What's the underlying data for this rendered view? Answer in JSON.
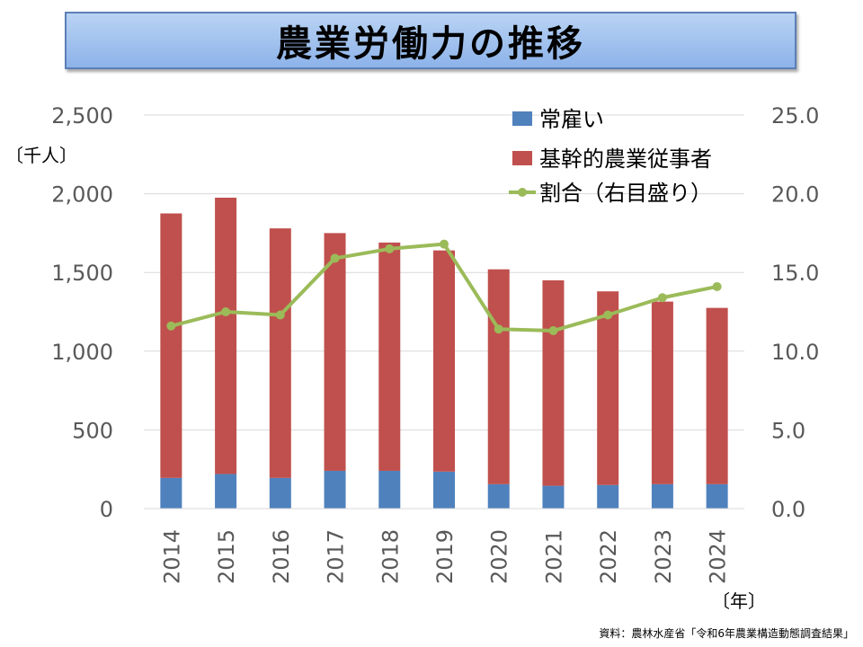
{
  "title": "農業労働力の推移",
  "source": "資料：農林水産省「令和6年農業構造動態調査結果」",
  "chart_data": {
    "type": "bar",
    "stacked": true,
    "categories": [
      "2014",
      "2015",
      "2016",
      "2017",
      "2018",
      "2019",
      "2020",
      "2021",
      "2022",
      "2023",
      "2024"
    ],
    "series": [
      {
        "name": "常雇い",
        "type": "bar",
        "axis": "left",
        "color": "#4f81bd",
        "values": [
          195,
          220,
          195,
          240,
          240,
          235,
          155,
          145,
          150,
          155,
          155
        ]
      },
      {
        "name": "基幹的農業従事者",
        "type": "bar",
        "axis": "left",
        "color": "#c0504d",
        "values": [
          1680,
          1755,
          1585,
          1510,
          1450,
          1405,
          1365,
          1305,
          1230,
          1160,
          1120
        ]
      },
      {
        "name": "割合（右目盛り）",
        "type": "line",
        "axis": "right",
        "color": "#9bbb59",
        "values": [
          11.6,
          12.5,
          12.3,
          15.9,
          16.5,
          16.8,
          11.4,
          11.3,
          12.3,
          13.4,
          14.1
        ]
      }
    ],
    "yAxisLeft": {
      "min": 0,
      "max": 2500,
      "ticks": [
        "0",
        "500",
        "1,000",
        "1,500",
        "2,000",
        "2,500"
      ],
      "unit": "〔千人〕"
    },
    "yAxisRight": {
      "min": 0,
      "max": 25,
      "ticks": [
        "0.0",
        "5.0",
        "10.0",
        "15.0",
        "20.0",
        "25.0"
      ]
    },
    "xAxis": {
      "unit": "〔年〕"
    },
    "legend": [
      "常雇い",
      "基幹的農業従事者",
      "割合（右目盛り）"
    ],
    "grid": true
  }
}
